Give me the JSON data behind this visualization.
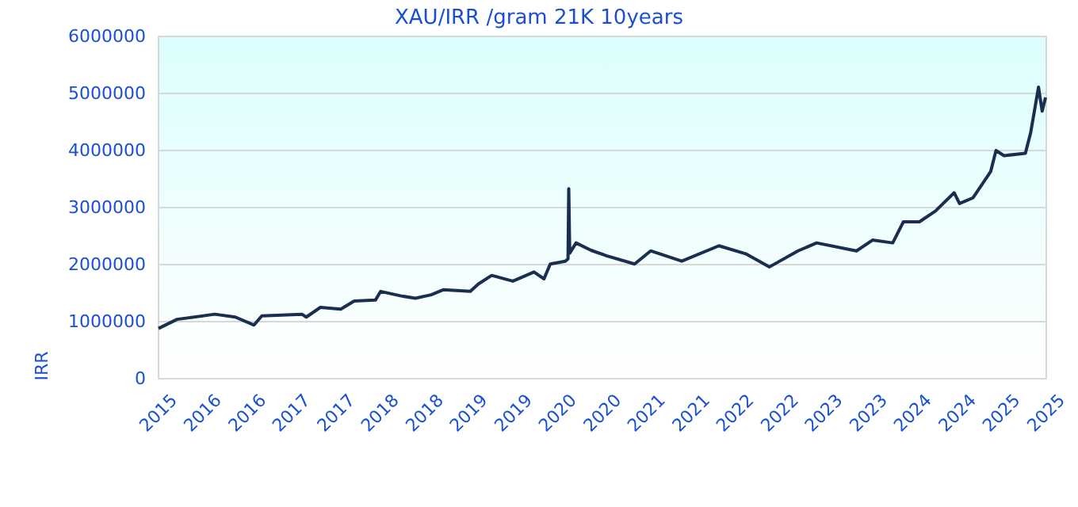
{
  "chart_data": {
    "type": "line",
    "title": "XAU/IRR /gram 21K 10years",
    "ylabel": "IRR",
    "x": [
      "2015-09-01",
      "2015-11-16",
      "2016-04-19",
      "2016-07-13",
      "2016-09-28",
      "2016-10-30",
      "2017-04-13",
      "2017-05-01",
      "2017-06-28",
      "2017-09-20",
      "2017-11-14",
      "2018-02-10",
      "2018-03-03",
      "2018-05-27",
      "2018-07-24",
      "2018-09-27",
      "2018-11-17",
      "2019-03-07",
      "2019-04-09",
      "2019-06-03",
      "2019-08-29",
      "2019-11-24",
      "2020-01-04",
      "2020-01-30",
      "2020-04-01",
      "2020-04-12",
      "2020-04-15",
      "2020-04-19",
      "2020-05-15",
      "2020-07-16",
      "2020-09-20",
      "2021-01-11",
      "2021-03-18",
      "2021-07-24",
      "2021-12-24",
      "2022-04-13",
      "2022-07-20",
      "2022-11-14",
      "2023-01-30",
      "2023-07-13",
      "2023-09-17",
      "2023-12-09",
      "2024-01-22",
      "2024-03-28",
      "2024-06-02",
      "2024-08-18",
      "2024-09-09",
      "2024-11-03",
      "2025-01-15",
      "2025-02-06",
      "2025-03-11",
      "2025-06-07",
      "2025-06-29",
      "2025-07-31",
      "2025-08-15",
      "2025-08-29"
    ],
    "series": [
      {
        "color": "#1a2e50",
        "values": [
          880000,
          1040000,
          1130000,
          1080000,
          940000,
          1100000,
          1130000,
          1080000,
          1250000,
          1220000,
          1360000,
          1380000,
          1530000,
          1450000,
          1410000,
          1470000,
          1560000,
          1530000,
          1660000,
          1810000,
          1710000,
          1870000,
          1750000,
          2010000,
          2060000,
          2100000,
          3330000,
          2200000,
          2380000,
          2250000,
          2150000,
          2010000,
          2240000,
          2060000,
          2330000,
          2190000,
          1960000,
          2240000,
          2380000,
          2240000,
          2430000,
          2380000,
          2750000,
          2750000,
          2940000,
          3260000,
          3070000,
          3170000,
          3630000,
          4000000,
          3910000,
          3950000,
          4320000,
          5110000,
          4690000,
          4930000
        ]
      }
    ],
    "xlim": [
      "2015-09-01",
      "2025-09-01"
    ],
    "xticks": [
      {
        "value": "2015-09-01",
        "label": "2015"
      },
      {
        "value": "2016-03-01",
        "label": "2016"
      },
      {
        "value": "2016-09-01",
        "label": "2016"
      },
      {
        "value": "2017-03-01",
        "label": "2017"
      },
      {
        "value": "2017-09-01",
        "label": "2017"
      },
      {
        "value": "2018-03-01",
        "label": "2018"
      },
      {
        "value": "2018-09-01",
        "label": "2018"
      },
      {
        "value": "2019-03-01",
        "label": "2019"
      },
      {
        "value": "2019-09-01",
        "label": "2019"
      },
      {
        "value": "2020-03-01",
        "label": "2020"
      },
      {
        "value": "2020-09-01",
        "label": "2020"
      },
      {
        "value": "2021-03-01",
        "label": "2021"
      },
      {
        "value": "2021-09-01",
        "label": "2021"
      },
      {
        "value": "2022-03-01",
        "label": "2022"
      },
      {
        "value": "2022-09-01",
        "label": "2022"
      },
      {
        "value": "2023-03-01",
        "label": "2023"
      },
      {
        "value": "2023-09-01",
        "label": "2023"
      },
      {
        "value": "2024-03-01",
        "label": "2024"
      },
      {
        "value": "2024-09-01",
        "label": "2024"
      },
      {
        "value": "2025-03-01",
        "label": "2025"
      },
      {
        "value": "2025-09-01",
        "label": "2025"
      }
    ],
    "ylim": [
      0,
      6000000
    ],
    "yticks": [
      0,
      1000000,
      2000000,
      3000000,
      4000000,
      5000000,
      6000000
    ],
    "grid": "y",
    "marker": "none",
    "line_style": "solid"
  }
}
